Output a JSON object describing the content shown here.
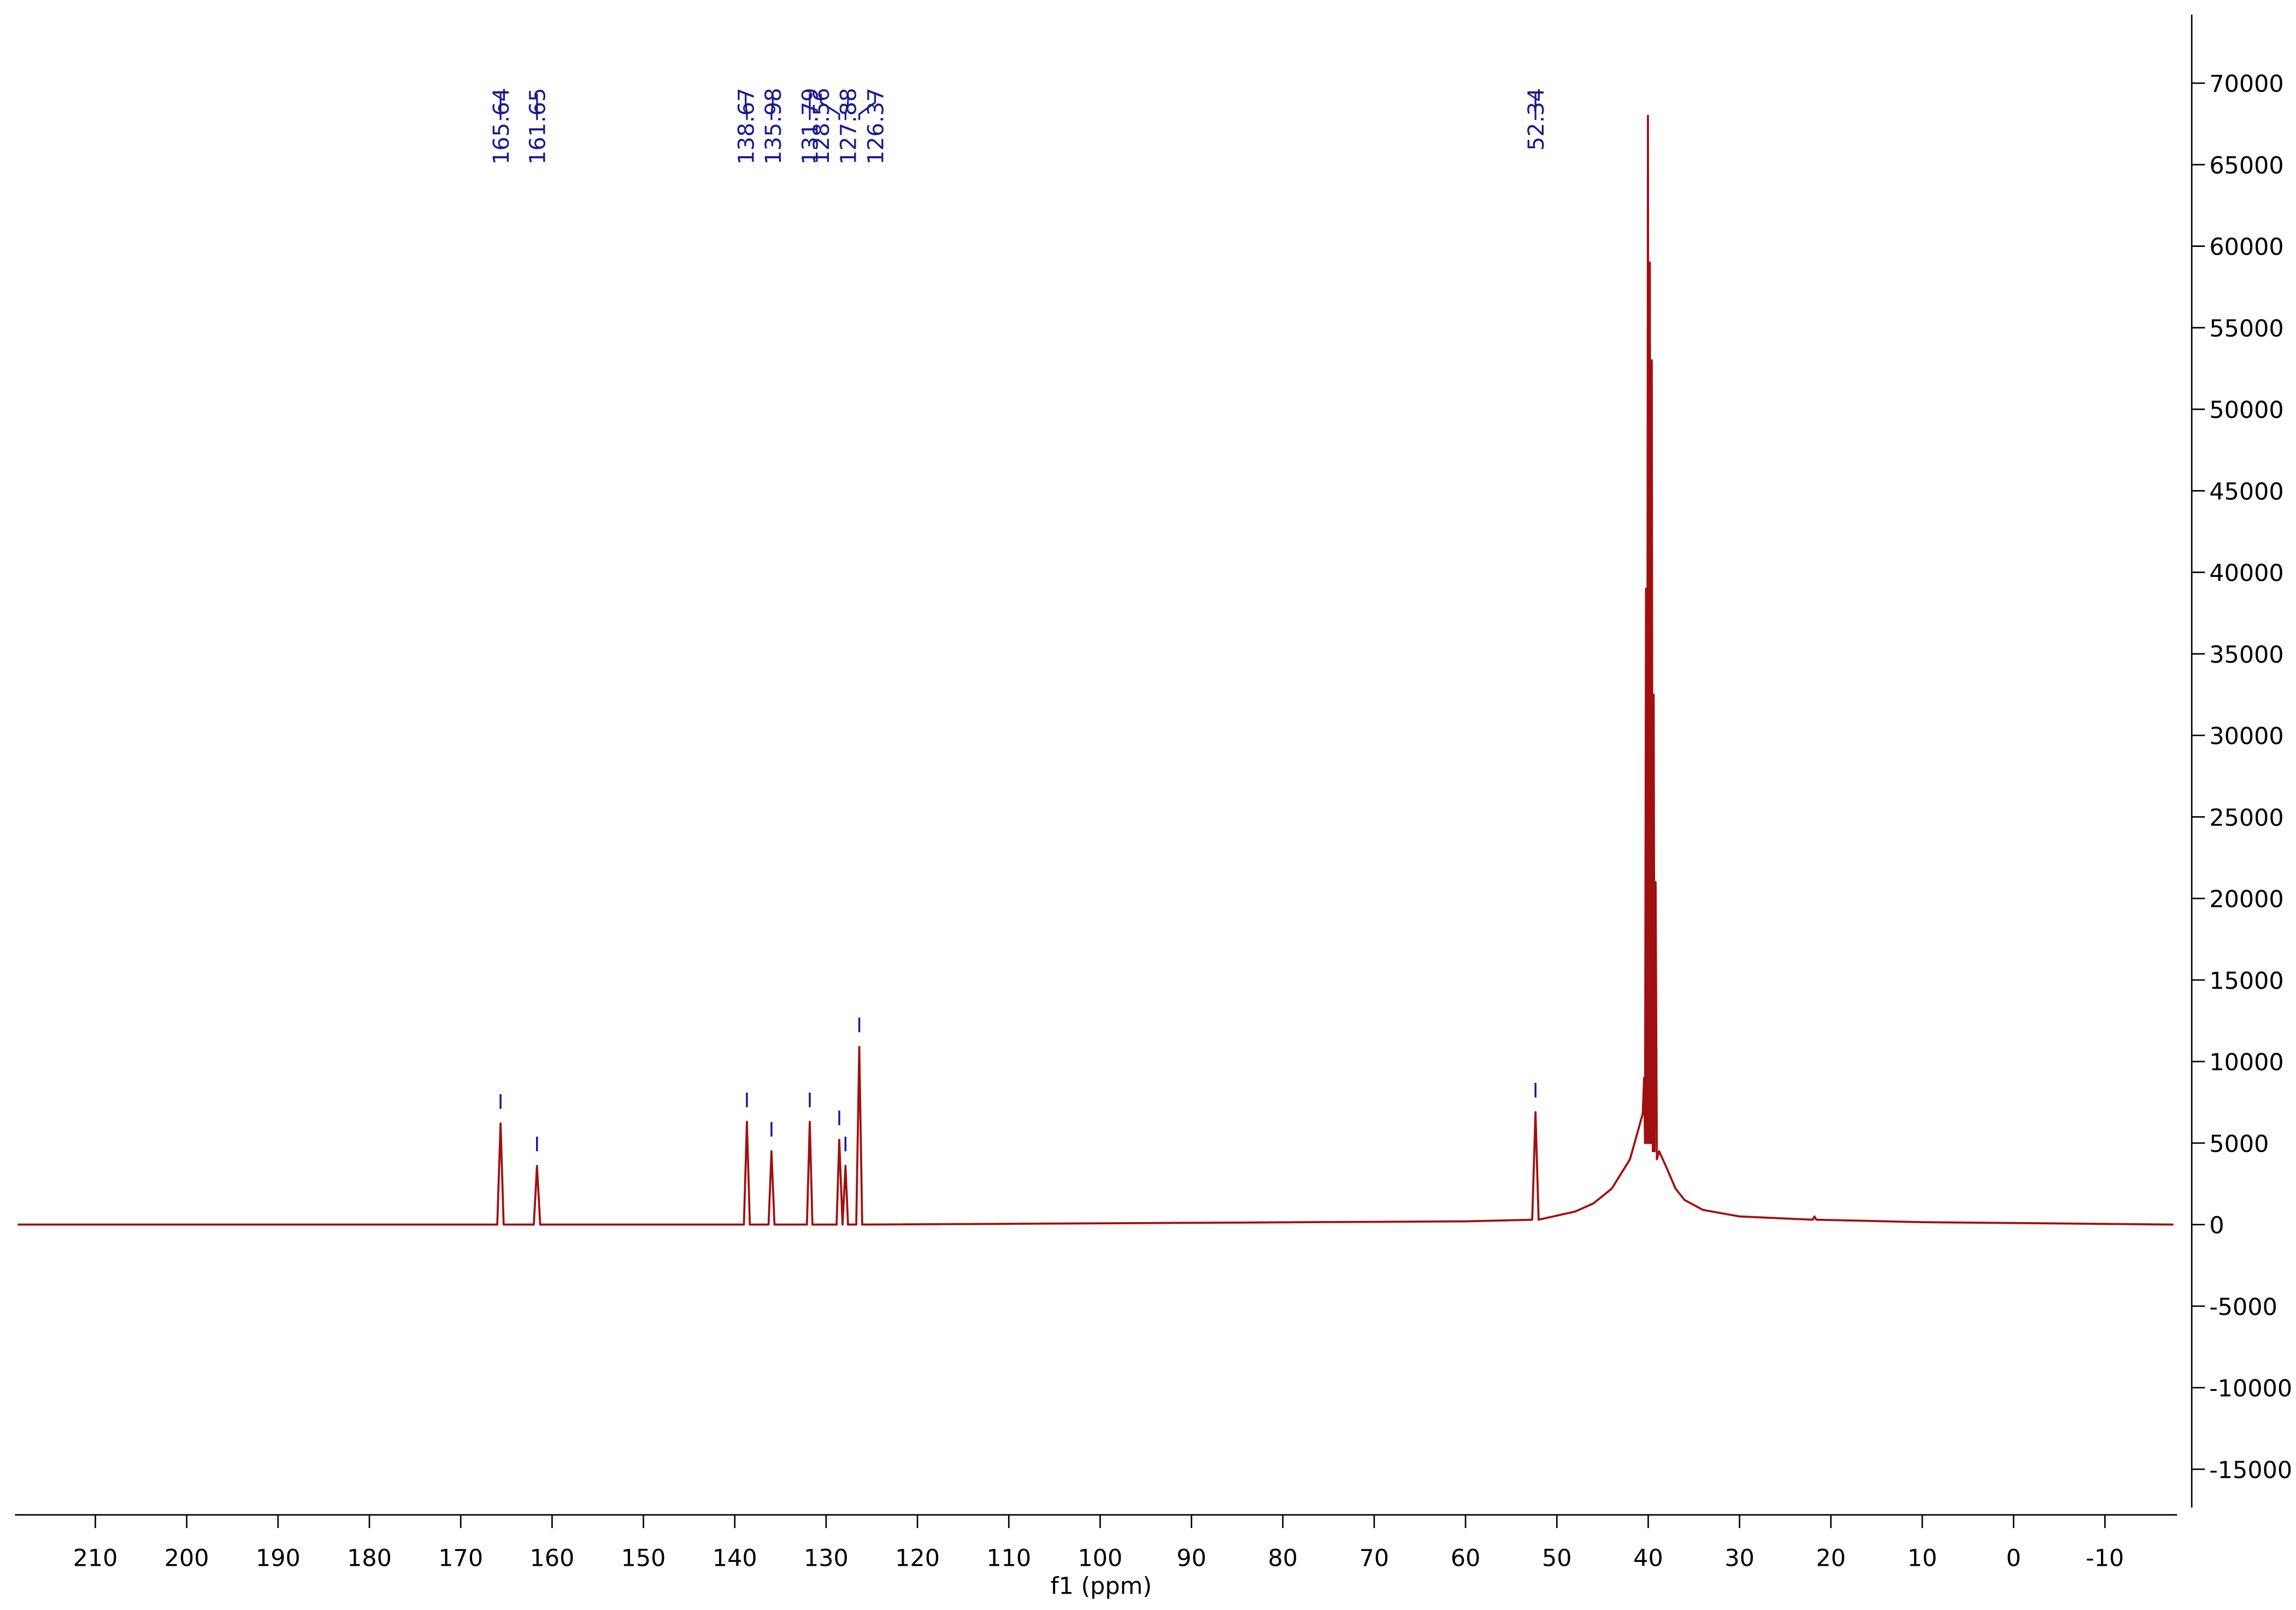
{
  "chart_data": {
    "type": "line",
    "x_label": "f1 (ppm)",
    "x": [
      218.5,
      166.0,
      165.64,
      165.3,
      162.0,
      161.65,
      161.3,
      139.0,
      138.67,
      138.35,
      136.3,
      135.98,
      135.65,
      132.1,
      131.79,
      131.5,
      128.85,
      128.56,
      128.2,
      127.88,
      127.6,
      126.7,
      126.37,
      126.05,
      60,
      52.7,
      52.34,
      52.0,
      48,
      46,
      44,
      42,
      41,
      40.6,
      40.45,
      40.35,
      40.24,
      40.13,
      40.03,
      39.92,
      39.82,
      39.72,
      39.61,
      39.5,
      39.4,
      39.3,
      39.19,
      39.05,
      38.8,
      38,
      37,
      36,
      34,
      30,
      22,
      21.8,
      21.6,
      10,
      -17.5
    ],
    "series": [
      {
        "color": "#a01010",
        "values": [
          0,
          0,
          6200,
          0,
          0,
          3600,
          0,
          0,
          6300,
          0,
          0,
          4500,
          0,
          0,
          6300,
          0,
          0,
          5200,
          0,
          3600,
          0,
          0,
          10900,
          0,
          200,
          300,
          6900,
          300,
          800,
          1300,
          2200,
          4000,
          6000,
          6800,
          9000,
          5000,
          39000,
          5000,
          68000,
          5000,
          59000,
          5000,
          53000,
          4500,
          32500,
          4500,
          21000,
          4000,
          4500,
          3500,
          2200,
          1500,
          900,
          500,
          300,
          500,
          300,
          150,
          0
        ]
      }
    ],
    "peaks": [
      165.64,
      161.65,
      138.67,
      135.98,
      131.79,
      128.56,
      127.88,
      126.37,
      52.34
    ],
    "peak_color": "#1a1a8c",
    "xlim": [
      218.8,
      -17.9
    ],
    "xticks": [
      210,
      200,
      190,
      180,
      170,
      160,
      150,
      140,
      130,
      120,
      110,
      100,
      90,
      80,
      70,
      60,
      50,
      40,
      30,
      20,
      10,
      0,
      -10
    ],
    "ylim": [
      -17800,
      74200
    ],
    "yticks": [
      -15000,
      -10000,
      -5000,
      0,
      5000,
      10000,
      15000,
      20000,
      25000,
      30000,
      35000,
      40000,
      45000,
      50000,
      55000,
      60000,
      65000,
      70000
    ]
  }
}
